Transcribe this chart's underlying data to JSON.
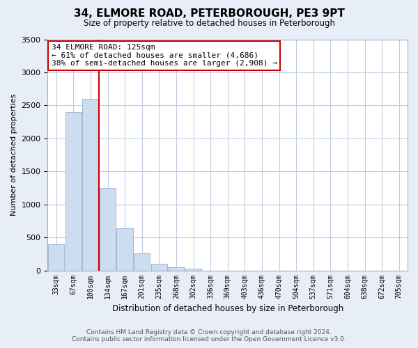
{
  "title": "34, ELMORE ROAD, PETERBOROUGH, PE3 9PT",
  "subtitle": "Size of property relative to detached houses in Peterborough",
  "xlabel": "Distribution of detached houses by size in Peterborough",
  "ylabel": "Number of detached properties",
  "bar_labels": [
    "33sqm",
    "67sqm",
    "100sqm",
    "134sqm",
    "167sqm",
    "201sqm",
    "235sqm",
    "268sqm",
    "302sqm",
    "336sqm",
    "369sqm",
    "403sqm",
    "436sqm",
    "470sqm",
    "504sqm",
    "537sqm",
    "571sqm",
    "604sqm",
    "638sqm",
    "672sqm",
    "705sqm"
  ],
  "bar_values": [
    400,
    2400,
    2600,
    1250,
    640,
    260,
    100,
    50,
    30,
    0,
    0,
    0,
    0,
    0,
    0,
    0,
    0,
    0,
    0,
    0,
    0
  ],
  "bar_color": "#ccddf0",
  "bar_edge_color": "#a0b8d8",
  "marker_line_color": "#cc0000",
  "ylim": [
    0,
    3500
  ],
  "annotation_title": "34 ELMORE ROAD: 125sqm",
  "annotation_line1": "← 61% of detached houses are smaller (4,686)",
  "annotation_line2": "38% of semi-detached houses are larger (2,908) →",
  "annotation_box_color": "#ffffff",
  "annotation_box_edge": "#cc0000",
  "footer_line1": "Contains HM Land Registry data © Crown copyright and database right 2024.",
  "footer_line2": "Contains public sector information licensed under the Open Government Licence v3.0.",
  "bg_color": "#e8eef8",
  "plot_bg_color": "#ffffff",
  "grid_color": "#c0cce0"
}
